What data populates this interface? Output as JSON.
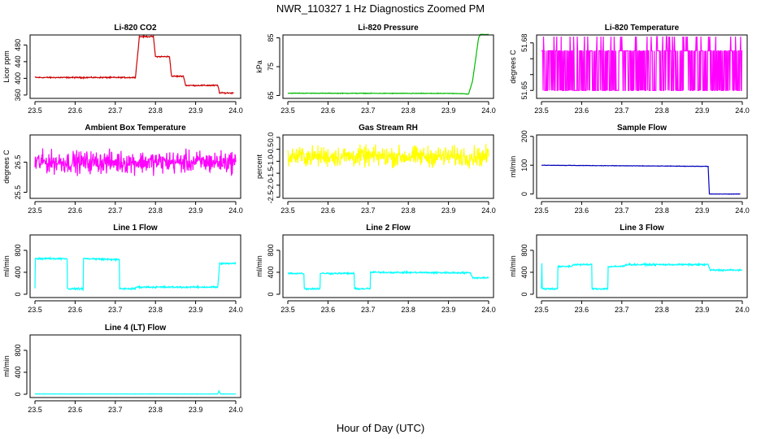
{
  "figure": {
    "title": "NWR_110327  1 Hz Diagnostics Zoomed PM",
    "xlabel": "Hour of Day (UTC)"
  },
  "chart_data": [
    {
      "type": "line",
      "title": "Li-820 CO2",
      "ylabel": "Licor ppm",
      "xlim": [
        23.5,
        24.0
      ],
      "ylim": [
        352,
        504
      ],
      "x_ticks": [
        23.5,
        23.6,
        23.7,
        23.8,
        23.9,
        24.0
      ],
      "y_ticks": [
        360,
        400,
        440,
        480
      ],
      "y_tick_labels": [
        "360",
        "400",
        "440",
        "480"
      ],
      "color": "#cc0000",
      "noise": 1.2,
      "x": [
        23.5,
        23.75,
        23.76,
        23.795,
        23.8,
        23.835,
        23.84,
        23.87,
        23.875,
        23.955,
        23.96,
        23.995
      ],
      "y": [
        402,
        402,
        500,
        500,
        452,
        452,
        405,
        405,
        383,
        383,
        365,
        365
      ]
    },
    {
      "type": "line",
      "title": "Li-820 Pressure",
      "ylabel": "kPa",
      "xlim": [
        23.5,
        24.0
      ],
      "ylim": [
        64,
        86
      ],
      "x_ticks": [
        23.5,
        23.6,
        23.7,
        23.8,
        23.9,
        24.0
      ],
      "y_ticks": [
        65,
        75,
        85
      ],
      "y_tick_labels": [
        "65",
        "75",
        "85"
      ],
      "color": "#00bb00",
      "noise": 0.08,
      "x": [
        23.5,
        23.92,
        23.95,
        23.96,
        23.975,
        23.98,
        24.0
      ],
      "y": [
        65.8,
        65.7,
        65.5,
        70,
        85,
        86.2,
        86.2
      ]
    },
    {
      "type": "line",
      "title": "Li-820 Temperature",
      "ylabel": "degrees C",
      "xlim": [
        23.5,
        24.0
      ],
      "ylim": [
        51.645,
        51.685
      ],
      "x_ticks": [
        23.5,
        23.6,
        23.7,
        23.8,
        23.9,
        24.0
      ],
      "y_ticks": [
        51.65,
        51.66,
        51.67,
        51.68
      ],
      "y_tick_labels": [
        "51.65",
        "",
        "",
        "51.68"
      ],
      "color": "#ff00ff",
      "noise": 0,
      "x": [
        23.5,
        24.0
      ],
      "y": [
        51.675,
        51.675
      ]
    },
    {
      "type": "line",
      "title": "Ambient Box Temperature",
      "ylabel": "degrees C",
      "xlim": [
        23.5,
        24.0
      ],
      "ylim": [
        25.3,
        27.4
      ],
      "x_ticks": [
        23.5,
        23.6,
        23.7,
        23.8,
        23.9,
        24.0
      ],
      "y_ticks": [
        25.5,
        26.5
      ],
      "y_tick_labels": [
        "25.5",
        "26.5"
      ],
      "color": "#ff00ff",
      "noise": 0.3,
      "x": [
        23.5,
        24.0
      ],
      "y": [
        26.5,
        26.5
      ]
    },
    {
      "type": "line",
      "title": "Gas Stream RH",
      "ylabel": "percent",
      "xlim": [
        23.5,
        24.0
      ],
      "ylim": [
        -2.55,
        0.1
      ],
      "x_ticks": [
        23.5,
        23.6,
        23.7,
        23.8,
        23.9,
        24.0
      ],
      "y_ticks": [
        -2.5,
        -1.5,
        -0.5
      ],
      "y_tick_labels": [
        "-2.5",
        "-1.5",
        "-0.5"
      ],
      "y_ticks_minor": [
        0.0,
        -1.0,
        -2.0
      ],
      "y_tick_labels_minor": [
        "0.0",
        "-1.0",
        "-2.0"
      ],
      "color": "#ffff00",
      "noise": 0.35,
      "x": [
        23.5,
        24.0
      ],
      "y": [
        -0.8,
        -0.8
      ]
    },
    {
      "type": "line",
      "title": "Sample Flow",
      "ylabel": "ml/min",
      "xlim": [
        23.5,
        24.0
      ],
      "ylim": [
        -15,
        205
      ],
      "x_ticks": [
        23.5,
        23.6,
        23.7,
        23.8,
        23.9,
        24.0
      ],
      "y_ticks": [
        0,
        100,
        200
      ],
      "y_tick_labels": [
        "0",
        "100",
        "200"
      ],
      "color": "#0000bb",
      "noise": 0.6,
      "x": [
        23.5,
        23.915,
        23.918,
        23.995
      ],
      "y": [
        100,
        96,
        0,
        0
      ]
    },
    {
      "type": "line",
      "title": "Line 1 Flow",
      "ylabel": "ml/min",
      "xlim": [
        23.5,
        24.0
      ],
      "ylim": [
        -60,
        1080
      ],
      "x_ticks": [
        23.5,
        23.6,
        23.7,
        23.8,
        23.9,
        24.0
      ],
      "y_ticks": [
        0,
        400,
        800
      ],
      "y_tick_labels": [
        "0",
        "400",
        "800"
      ],
      "color": "#00ffff",
      "noise": 12,
      "x": [
        23.5,
        23.501,
        23.58,
        23.581,
        23.62,
        23.621,
        23.71,
        23.711,
        23.75,
        23.751,
        23.955,
        23.96,
        24.0
      ],
      "y": [
        100,
        650,
        650,
        100,
        100,
        650,
        630,
        100,
        100,
        130,
        130,
        560,
        560
      ]
    },
    {
      "type": "line",
      "title": "Line 2 Flow",
      "ylabel": "ml/min",
      "xlim": [
        23.5,
        24.0
      ],
      "ylim": [
        -60,
        1080
      ],
      "x_ticks": [
        23.5,
        23.6,
        23.7,
        23.8,
        23.9,
        24.0
      ],
      "y_ticks": [
        0,
        400,
        800
      ],
      "y_tick_labels": [
        "0",
        "400",
        "800"
      ],
      "color": "#00ffff",
      "noise": 12,
      "x": [
        23.5,
        23.54,
        23.541,
        23.58,
        23.581,
        23.665,
        23.666,
        23.705,
        23.706,
        23.955,
        23.96,
        24.0
      ],
      "y": [
        380,
        380,
        100,
        100,
        380,
        380,
        100,
        100,
        400,
        390,
        300,
        300
      ]
    },
    {
      "type": "line",
      "title": "Line 3 Flow",
      "ylabel": "ml/min",
      "xlim": [
        23.5,
        24.0
      ],
      "ylim": [
        -60,
        1080
      ],
      "x_ticks": [
        23.5,
        23.6,
        23.7,
        23.8,
        23.9,
        24.0
      ],
      "y_ticks": [
        0,
        400,
        800
      ],
      "y_tick_labels": [
        "0",
        "400",
        "800"
      ],
      "color": "#00ffff",
      "noise": 12,
      "x": [
        23.5,
        23.501,
        23.502,
        23.54,
        23.541,
        23.575,
        23.58,
        23.625,
        23.626,
        23.665,
        23.666,
        23.705,
        23.71,
        23.915,
        23.92,
        24.0
      ],
      "y": [
        100,
        560,
        100,
        100,
        500,
        510,
        540,
        540,
        100,
        100,
        500,
        510,
        540,
        540,
        440,
        440
      ]
    },
    {
      "type": "line",
      "title": "Line 4 (LT) Flow",
      "ylabel": "ml/min",
      "xlim": [
        23.5,
        24.0
      ],
      "ylim": [
        -60,
        1080
      ],
      "x_ticks": [
        23.5,
        23.6,
        23.7,
        23.8,
        23.9,
        24.0
      ],
      "y_ticks": [
        0,
        400,
        800
      ],
      "y_tick_labels": [
        "0",
        "400",
        "800"
      ],
      "color": "#00ffff",
      "noise": 2,
      "x": [
        23.5,
        23.955,
        23.958,
        23.962,
        24.0
      ],
      "y": [
        5,
        5,
        60,
        5,
        5
      ]
    }
  ]
}
